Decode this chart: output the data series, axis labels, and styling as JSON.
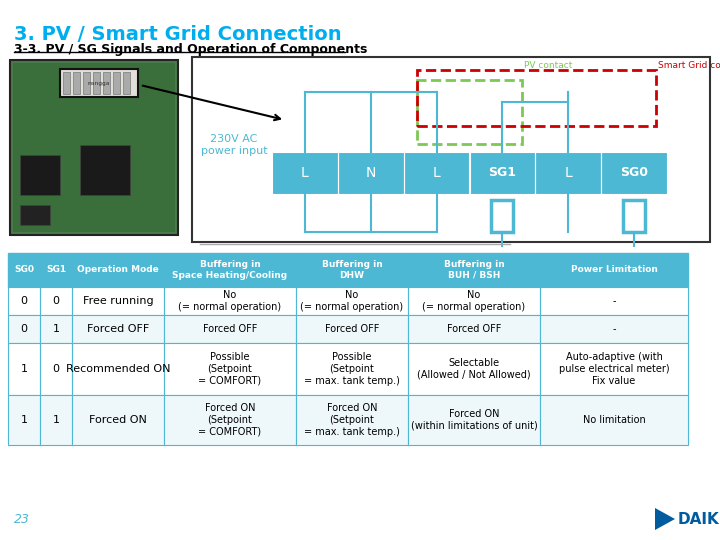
{
  "title": "3. PV / Smart Grid Connection",
  "subtitle": "3-3. PV / SG Signals and Operation of Components",
  "title_color": "#00AEEF",
  "subtitle_color": "#000000",
  "bg_color": "#FFFFFF",
  "table_header_bg": "#4DB8D4",
  "table_header_color": "#FFFFFF",
  "table_border_color": "#4DB8D4",
  "diagram_bg": "#FFFFFF",
  "diagram_border": "#000000",
  "terminal_bar_color": "#4DB8D4",
  "terminal_text_color": "#FFFFFF",
  "pv_box_color": "#7DC855",
  "sg_box_color": "#CC0000",
  "wire_color": "#4DB8D4",
  "power_text_color": "#4DB8D4",
  "connector_color": "#4DB8D4",
  "page_number": "23",
  "columns": [
    "SG0",
    "SG1",
    "Operation Mode",
    "Buffering in\nSpace Heating/Cooling",
    "Buffering in\nDHW",
    "Buffering in\nBUH / BSH",
    "Power Limitation"
  ],
  "rows": [
    [
      "0",
      "0",
      "Free running",
      "No\n(= normal operation)",
      "No\n(= normal operation)",
      "No\n(= normal operation)",
      "-"
    ],
    [
      "0",
      "1",
      "Forced OFF",
      "Forced OFF",
      "Forced OFF",
      "Forced OFF",
      "-"
    ],
    [
      "1",
      "0",
      "Recommended ON",
      "Possible\n(Setpoint\n= COMFORT)",
      "Possible\n(Setpoint\n= max. tank temp.)",
      "Selectable\n(Allowed / Not Allowed)",
      "Auto-adaptive (with\npulse electrical meter)\nFix value"
    ],
    [
      "1",
      "1",
      "Forced ON",
      "Forced ON\n(Setpoint\n= COMFORT)",
      "Forced ON\n(Setpoint\n= max. tank temp.)",
      "Forced ON\n(within limitations of unit)",
      "No limitation"
    ]
  ],
  "terminals": [
    "L",
    "N",
    "L",
    "SG1",
    "L",
    "SG0"
  ],
  "pv_contact_label": "PV contact",
  "sg_contact_label": "Smart Grid contacts",
  "power_input_label": "230V AC\npower input"
}
